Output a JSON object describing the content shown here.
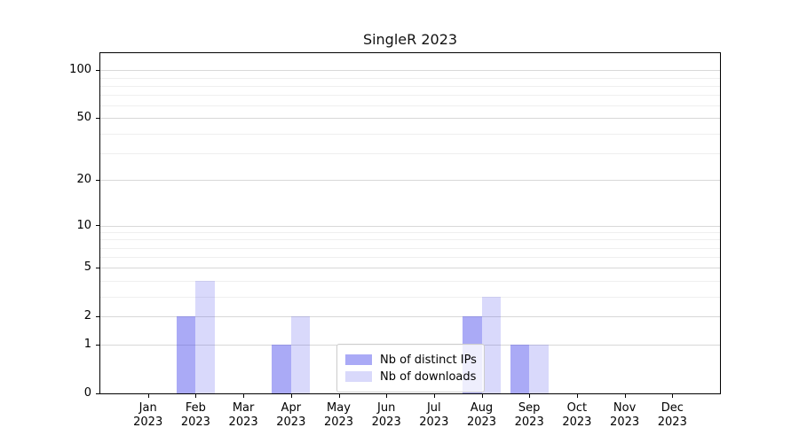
{
  "chart": {
    "title": "SingleR 2023",
    "accent_colors": {
      "bar_distinct_ips": "#aaaaf5",
      "bar_downloads": "#dedefb",
      "major_grid": "#d8d8d8",
      "minor_grid": "#efefef",
      "spine": "#000000",
      "legend_border": "#cccccc"
    }
  },
  "chart_data": {
    "type": "bar",
    "title": "SingleR 2023",
    "categories": [
      "Jan 2023",
      "Feb 2023",
      "Mar 2023",
      "Apr 2023",
      "May 2023",
      "Jun 2023",
      "Jul 2023",
      "Aug 2023",
      "Sep 2023",
      "Oct 2023",
      "Nov 2023",
      "Dec 2023"
    ],
    "series": [
      {
        "name": "Nb of distinct IPs",
        "values": [
          0,
          2,
          0,
          1,
          0,
          0,
          0,
          2,
          1,
          0,
          0,
          0
        ],
        "color": "#aaaaf5",
        "fill_rgba": "rgba(75,75,235,0.47)"
      },
      {
        "name": "Nb of downloads",
        "values": [
          0,
          4,
          0,
          2,
          0,
          0,
          0,
          3,
          1,
          0,
          0,
          0
        ],
        "color": "#dedefb",
        "fill_rgba": "rgba(75,75,235,0.21)"
      }
    ],
    "xlabel": "",
    "ylabel": "",
    "yscale": "log1p",
    "yticks": [
      0,
      1,
      2,
      5,
      10,
      20,
      50,
      100
    ],
    "minor_yticks": [
      3,
      4,
      6,
      7,
      8,
      9,
      30,
      40,
      60,
      70,
      80,
      90
    ],
    "ylim": [
      0,
      128
    ],
    "grid": "major and minor horizontal gridlines",
    "legend_position": "lower center inside plot"
  }
}
